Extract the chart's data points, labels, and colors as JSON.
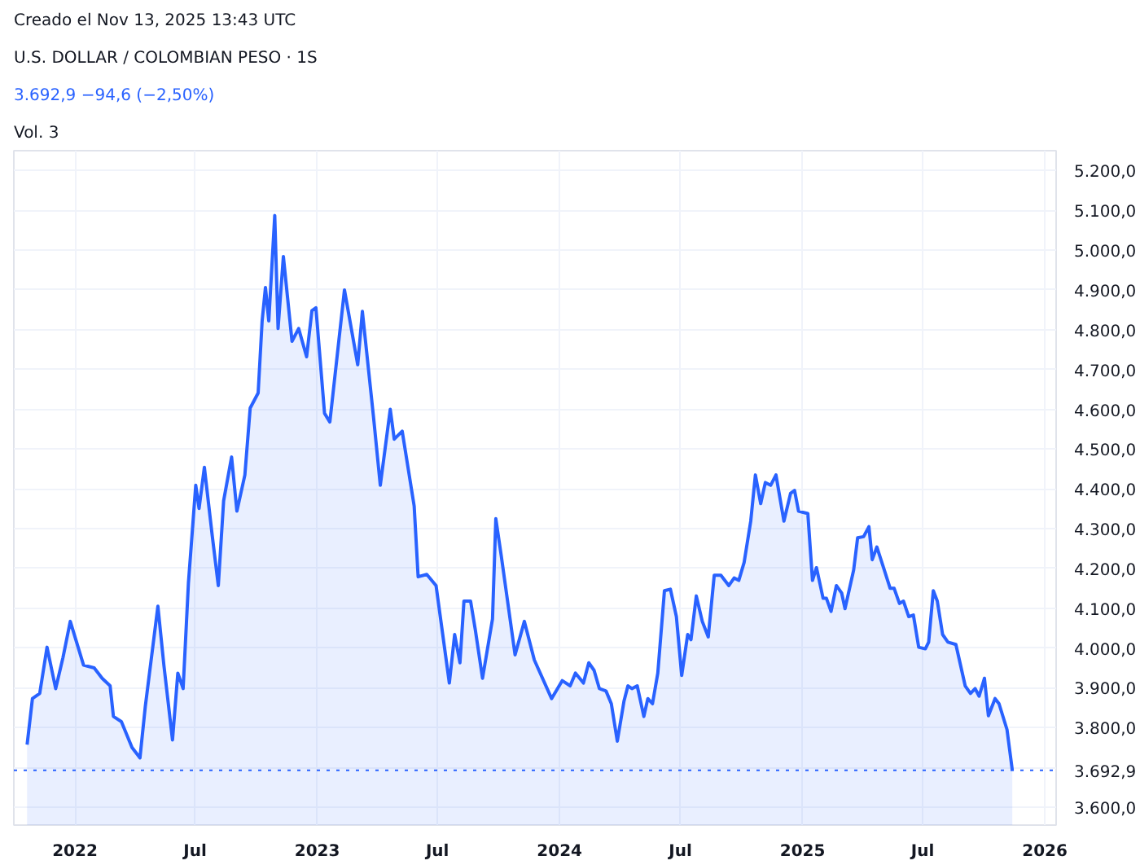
{
  "chart_data": {
    "type": "area",
    "title": "U.S. DOLLAR / COLOMBIAN PESO · 1S",
    "subtitle": "3.692,9  −94,6 (−2,50%)",
    "annotations": [
      "Creado el Nov 13, 2025 13:43 UTC",
      "Vol. 3"
    ],
    "x": [
      "2021-10-21",
      "2021-10-29",
      "2021-11-09",
      "2021-11-20",
      "2021-12-03",
      "2021-12-14",
      "2021-12-25",
      "2022-01-14",
      "2022-01-30",
      "2022-02-11",
      "2022-02-23",
      "2022-02-28",
      "2022-03-12",
      "2022-03-28",
      "2022-04-09",
      "2022-04-17",
      "2022-05-06",
      "2022-05-15",
      "2022-05-28",
      "2022-06-05",
      "2022-06-13",
      "2022-06-21",
      "2022-07-02",
      "2022-07-07",
      "2022-07-15",
      "2022-07-27",
      "2022-08-05",
      "2022-08-13",
      "2022-08-25",
      "2022-09-02",
      "2022-09-14",
      "2022-09-22",
      "2022-10-04",
      "2022-10-10",
      "2022-10-15",
      "2022-10-20",
      "2022-10-29",
      "2022-11-03",
      "2022-11-11",
      "2022-11-24",
      "2022-12-04",
      "2022-12-16",
      "2022-12-24",
      "2022-12-30",
      "2023-01-12",
      "2023-01-20",
      "2023-02-11",
      "2023-03-03",
      "2023-03-10",
      "2023-03-27",
      "2023-04-06",
      "2023-04-21",
      "2023-04-27",
      "2023-05-09",
      "2023-05-27",
      "2023-06-02",
      "2023-06-15",
      "2023-06-29",
      "2023-07-19",
      "2023-07-27",
      "2023-08-04",
      "2023-08-10",
      "2023-08-20",
      "2023-08-27",
      "2023-09-07",
      "2023-09-22",
      "2023-09-27",
      "2023-10-05",
      "2023-10-26",
      "2023-11-09",
      "2023-11-24",
      "2023-12-20",
      "2024-01-05",
      "2024-01-17",
      "2024-01-25",
      "2024-02-06",
      "2024-02-14",
      "2024-02-22",
      "2024-03-01",
      "2024-03-11",
      "2024-03-19",
      "2024-03-28",
      "2024-04-07",
      "2024-04-13",
      "2024-04-19",
      "2024-04-27",
      "2024-05-07",
      "2024-05-13",
      "2024-05-20",
      "2024-05-28",
      "2024-06-07",
      "2024-06-16",
      "2024-06-25",
      "2024-07-03",
      "2024-07-12",
      "2024-07-17",
      "2024-07-25",
      "2024-08-03",
      "2024-08-12",
      "2024-08-21",
      "2024-08-31",
      "2024-09-12",
      "2024-09-20",
      "2024-09-27",
      "2024-10-05",
      "2024-10-15",
      "2024-10-22",
      "2024-10-30",
      "2024-11-06",
      "2024-11-14",
      "2024-11-22",
      "2024-12-04",
      "2024-12-14",
      "2024-12-20",
      "2024-12-26",
      "2025-01-09",
      "2025-01-16",
      "2025-01-22",
      "2025-02-01",
      "2025-02-06",
      "2025-02-13",
      "2025-02-21",
      "2025-03-01",
      "2025-03-06",
      "2025-03-19",
      "2025-03-25",
      "2025-04-03",
      "2025-04-11",
      "2025-04-16",
      "2025-04-23",
      "2025-05-03",
      "2025-05-13",
      "2025-05-19",
      "2025-05-27",
      "2025-06-02",
      "2025-06-10",
      "2025-06-17",
      "2025-06-25",
      "2025-07-05",
      "2025-07-10",
      "2025-07-17",
      "2025-07-23",
      "2025-07-31",
      "2025-08-08",
      "2025-08-20",
      "2025-09-03",
      "2025-09-11",
      "2025-09-18",
      "2025-09-24",
      "2025-10-02",
      "2025-10-08",
      "2025-10-18",
      "2025-10-24",
      "2025-11-05",
      "2025-11-13"
    ],
    "series": [
      {
        "color": "#2962ff",
        "values": [
          3757,
          3873,
          3886,
          4002,
          3898,
          3976,
          4067,
          3957,
          3950,
          3924,
          3905,
          3828,
          3815,
          3750,
          3724,
          3853,
          4105,
          3957,
          3769,
          3937,
          3898,
          4164,
          4409,
          4351,
          4454,
          4280,
          4157,
          4370,
          4480,
          4344,
          4435,
          4603,
          4641,
          4822,
          4906,
          4822,
          5087,
          4803,
          4984,
          4771,
          4803,
          4732,
          4848,
          4855,
          4590,
          4568,
          4900,
          4712,
          4846,
          4577,
          4409,
          4600,
          4525,
          4545,
          4357,
          4179,
          4185,
          4157,
          3912,
          4034,
          3963,
          4118,
          4118,
          4047,
          3924,
          4073,
          4325,
          4234,
          3983,
          4067,
          3970,
          3873,
          3918,
          3905,
          3937,
          3912,
          3963,
          3944,
          3898,
          3892,
          3860,
          3766,
          3866,
          3905,
          3898,
          3905,
          3828,
          3873,
          3860,
          3937,
          4144,
          4148,
          4079,
          3931,
          4034,
          4021,
          4131,
          4067,
          4028,
          4183,
          4183,
          4157,
          4176,
          4170,
          4215,
          4319,
          4435,
          4363,
          4416,
          4409,
          4435,
          4319,
          4389,
          4396,
          4344,
          4338,
          4170,
          4202,
          4125,
          4125,
          4092,
          4157,
          4138,
          4099,
          4196,
          4277,
          4280,
          4305,
          4222,
          4254,
          4202,
          4150,
          4150,
          4112,
          4118,
          4079,
          4083,
          4002,
          3998,
          4015,
          4144,
          4118,
          4034,
          4015,
          4009,
          3905,
          3886,
          3898,
          3879,
          3924,
          3830,
          3873,
          3860,
          3795,
          3692.9
        ]
      }
    ],
    "xlim": [
      "2021-10-01",
      "2026-01-18"
    ],
    "xticks": [
      {
        "value": "2022-01-01",
        "label": "2022"
      },
      {
        "value": "2022-07-01",
        "label": "Jul"
      },
      {
        "value": "2023-01-01",
        "label": "2023"
      },
      {
        "value": "2023-07-01",
        "label": "Jul"
      },
      {
        "value": "2024-01-01",
        "label": "2024"
      },
      {
        "value": "2024-07-01",
        "label": "Jul"
      },
      {
        "value": "2025-01-01",
        "label": "2025"
      },
      {
        "value": "2025-07-01",
        "label": "Jul"
      },
      {
        "value": "2026-01-01",
        "label": "2026"
      }
    ],
    "ylim": [
      3555,
      5250
    ],
    "yticks": [
      {
        "value": 3600,
        "label": "3.600,0"
      },
      {
        "value": 3700,
        "label": null
      },
      {
        "value": 3800,
        "label": "3.800,0"
      },
      {
        "value": 3900,
        "label": "3.900,0"
      },
      {
        "value": 4000,
        "label": "4.000,0"
      },
      {
        "value": 4100,
        "label": "4.100,0"
      },
      {
        "value": 4200,
        "label": "4.200,0"
      },
      {
        "value": 4300,
        "label": "4.300,0"
      },
      {
        "value": 4400,
        "label": "4.400,0"
      },
      {
        "value": 4500,
        "label": "4.500,0"
      },
      {
        "value": 4600,
        "label": "4.600,0"
      },
      {
        "value": 4700,
        "label": "4.700,0"
      },
      {
        "value": 4800,
        "label": "4.800,0"
      },
      {
        "value": 4900,
        "label": "4.900,0"
      },
      {
        "value": 5000,
        "label": "5.000,0"
      },
      {
        "value": 5100,
        "label": "5.100,0"
      },
      {
        "value": 5200,
        "label": "5.200,0"
      }
    ],
    "ref_lines": [
      {
        "axis": "y",
        "value": 3692.9,
        "label": "3.692,9",
        "color": "#2962ff",
        "line_style": "dotted"
      }
    ],
    "grid": true
  }
}
